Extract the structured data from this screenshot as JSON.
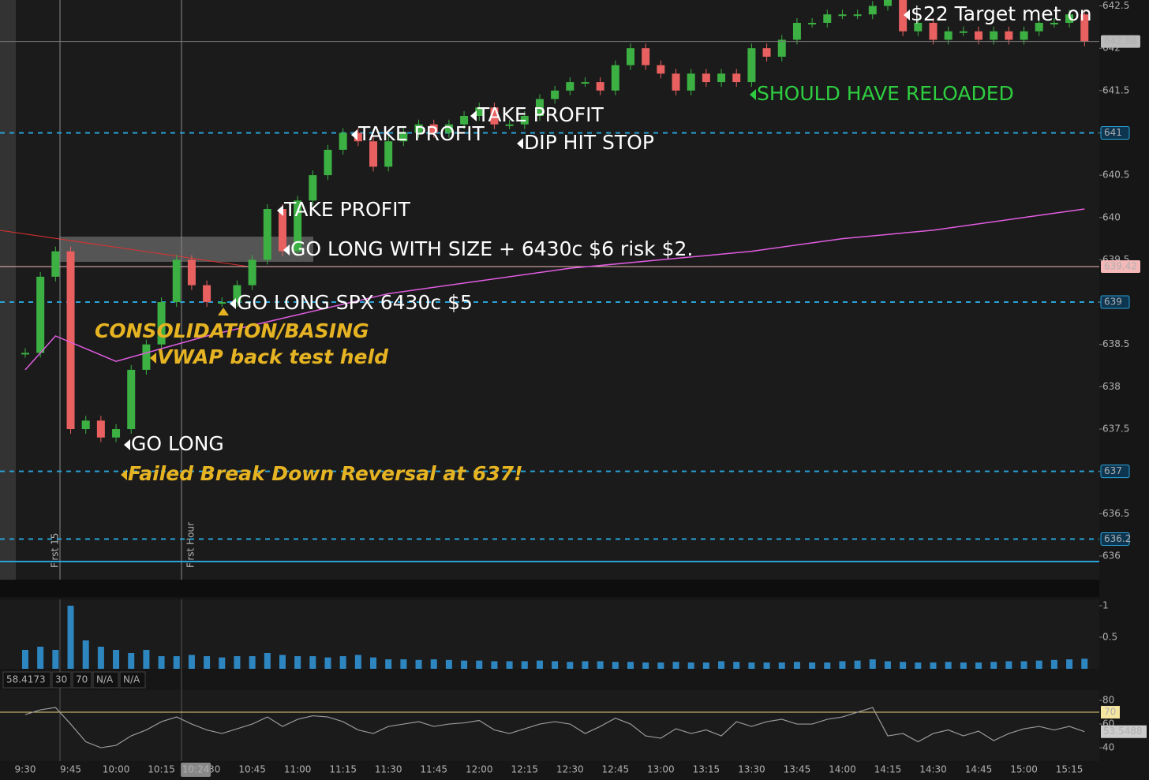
{
  "chart_data": {
    "type": "candlestick",
    "x": [
      "9:30",
      "9:35",
      "9:40",
      "9:45",
      "9:50",
      "9:55",
      "10:00",
      "10:05",
      "10:10",
      "10:15",
      "10:20",
      "10:25",
      "10:30",
      "10:35",
      "10:40",
      "10:45",
      "10:50",
      "10:55",
      "11:00",
      "11:05",
      "11:10",
      "11:15",
      "11:20",
      "11:25",
      "11:30",
      "11:35",
      "11:40",
      "11:45",
      "11:50",
      "11:55",
      "12:00",
      "12:05",
      "12:10",
      "12:15",
      "12:20",
      "12:25",
      "12:30",
      "12:35",
      "12:40",
      "12:45",
      "12:50",
      "12:55",
      "13:00",
      "13:05",
      "13:10",
      "13:15",
      "13:20",
      "13:25",
      "13:30",
      "13:35",
      "13:40",
      "13:45",
      "13:50",
      "13:55",
      "14:00",
      "14:05",
      "14:10",
      "14:15",
      "14:20",
      "14:25",
      "14:30",
      "14:35",
      "14:40",
      "14:45",
      "14:50",
      "14:55",
      "15:00",
      "15:05",
      "15:10",
      "15:15",
      "15:20"
    ],
    "series": [
      {
        "values": [
          638.4,
          639.3,
          639.6,
          637.5,
          637.6,
          637.4,
          637.5,
          638.2,
          638.5,
          639.0,
          639.5,
          639.2,
          639.0,
          639.0,
          639.2,
          639.5,
          640.1,
          639.6,
          640.2,
          640.5,
          640.8,
          641.0,
          640.9,
          640.6,
          640.9,
          641.0,
          641.1,
          641.0,
          641.1,
          641.2,
          641.3,
          641.1,
          641.1,
          641.2,
          641.4,
          641.5,
          641.6,
          641.6,
          641.5,
          641.8,
          642.0,
          641.8,
          641.7,
          641.5,
          641.7,
          641.6,
          641.7,
          641.6,
          642.0,
          641.9,
          642.1,
          642.3,
          642.3,
          642.4,
          642.4,
          642.4,
          642.5,
          642.6,
          642.2,
          642.3,
          642.1,
          642.2,
          642.2,
          642.1,
          642.2,
          642.1,
          642.2,
          642.3,
          642.3,
          642.4,
          642.08
        ],
        "up_color": "#3cb043",
        "down_color": "#e8605f"
      }
    ],
    "vwap": {
      "color": "#e05ce0",
      "x": [
        "9:30",
        "9:40",
        "10:00",
        "10:30",
        "11:00",
        "11:30",
        "12:00",
        "12:30",
        "13:00",
        "13:30",
        "14:00",
        "14:30",
        "15:00",
        "15:20"
      ],
      "values": [
        638.2,
        638.6,
        638.3,
        638.6,
        638.85,
        639.1,
        639.25,
        639.4,
        639.5,
        639.6,
        639.75,
        639.85,
        640.0,
        640.1
      ]
    },
    "ylim": [
      635.72,
      642.57
    ],
    "yticks": [
      636,
      636.5,
      637,
      637.5,
      638,
      638.5,
      639,
      639.5,
      640,
      640.5,
      641,
      641.5,
      642,
      642.5
    ],
    "levels": [
      641,
      639,
      637,
      636.2
    ],
    "marker_level": 639.42,
    "markers": [
      "First 15",
      "First Hour"
    ],
    "annotations": [
      {
        "text": "$22 Target met on",
        "color": "#ffffff"
      },
      {
        "text": "SHOULD HAVE RELOADED",
        "color": "#2ecc40"
      },
      {
        "text": "TAKE PROFIT",
        "color": "#ffffff"
      },
      {
        "text": "TAKE PROFIT",
        "color": "#ffffff"
      },
      {
        "text": "DIP HIT STOP",
        "color": "#ffffff"
      },
      {
        "text": "TAKE PROFIT",
        "color": "#ffffff"
      },
      {
        "text": "GO LONG WITH SIZE + 6430c $6 risk $2.",
        "color": "#ffffff"
      },
      {
        "text": "GO LONG SPX 6430c $5",
        "color": "#ffffff"
      },
      {
        "text": "CONSOLIDATION/BASING",
        "color": "#e6b422"
      },
      {
        "text": "VWAP back test held",
        "color": "#e6b422"
      },
      {
        "text": "GO LONG",
        "color": "#ffffff"
      },
      {
        "text": "Failed Break Down Reversal  at 637!",
        "color": "#e6b422"
      }
    ],
    "volume": {
      "color": "#2e86c1",
      "ylim": [
        0,
        1.1
      ],
      "yticks": [
        0.5,
        1
      ],
      "values": [
        0.3,
        0.35,
        0.3,
        1.0,
        0.45,
        0.35,
        0.3,
        0.25,
        0.3,
        0.2,
        0.2,
        0.22,
        0.2,
        0.18,
        0.2,
        0.2,
        0.25,
        0.22,
        0.2,
        0.2,
        0.18,
        0.2,
        0.22,
        0.18,
        0.15,
        0.15,
        0.14,
        0.15,
        0.14,
        0.13,
        0.13,
        0.12,
        0.12,
        0.12,
        0.13,
        0.12,
        0.11,
        0.12,
        0.12,
        0.11,
        0.11,
        0.1,
        0.1,
        0.11,
        0.1,
        0.1,
        0.12,
        0.11,
        0.1,
        0.1,
        0.1,
        0.11,
        0.1,
        0.1,
        0.12,
        0.13,
        0.15,
        0.12,
        0.11,
        0.1,
        0.1,
        0.11,
        0.1,
        0.1,
        0.11,
        0.12,
        0.12,
        0.13,
        0.14,
        0.15,
        0.16
      ]
    },
    "rsi": {
      "color": "#9a9a9a",
      "ylim": [
        26.7,
        88.7
      ],
      "yticks": [
        40,
        60,
        80
      ],
      "overbought": 70,
      "header": [
        "58.4173",
        "30",
        "70",
        "N/A",
        "N/A"
      ],
      "values": [
        68,
        72,
        74,
        60,
        45,
        40,
        42,
        50,
        55,
        62,
        66,
        60,
        55,
        52,
        56,
        60,
        66,
        58,
        64,
        67,
        66,
        62,
        55,
        52,
        58,
        60,
        62,
        58,
        60,
        61,
        63,
        55,
        52,
        56,
        60,
        62,
        60,
        52,
        58,
        65,
        60,
        50,
        48,
        56,
        52,
        55,
        50,
        62,
        58,
        62,
        64,
        60,
        60,
        64,
        66,
        70,
        74,
        50,
        52,
        45,
        52,
        55,
        50,
        54,
        46,
        52,
        56,
        58,
        55,
        58,
        53.5488
      ]
    },
    "xticks": [
      "9:30",
      "9:45",
      "10:00",
      "10:15",
      "10:30",
      "10:45",
      "11:00",
      "11:15",
      "11:30",
      "11:45",
      "12:00",
      "12:15",
      "12:30",
      "12:45",
      "13:00",
      "13:15",
      "13:30",
      "13:45",
      "14:00",
      "14:15",
      "14:30",
      "14:45",
      "15:00",
      "15:15"
    ],
    "cursor_time": "10:24"
  }
}
